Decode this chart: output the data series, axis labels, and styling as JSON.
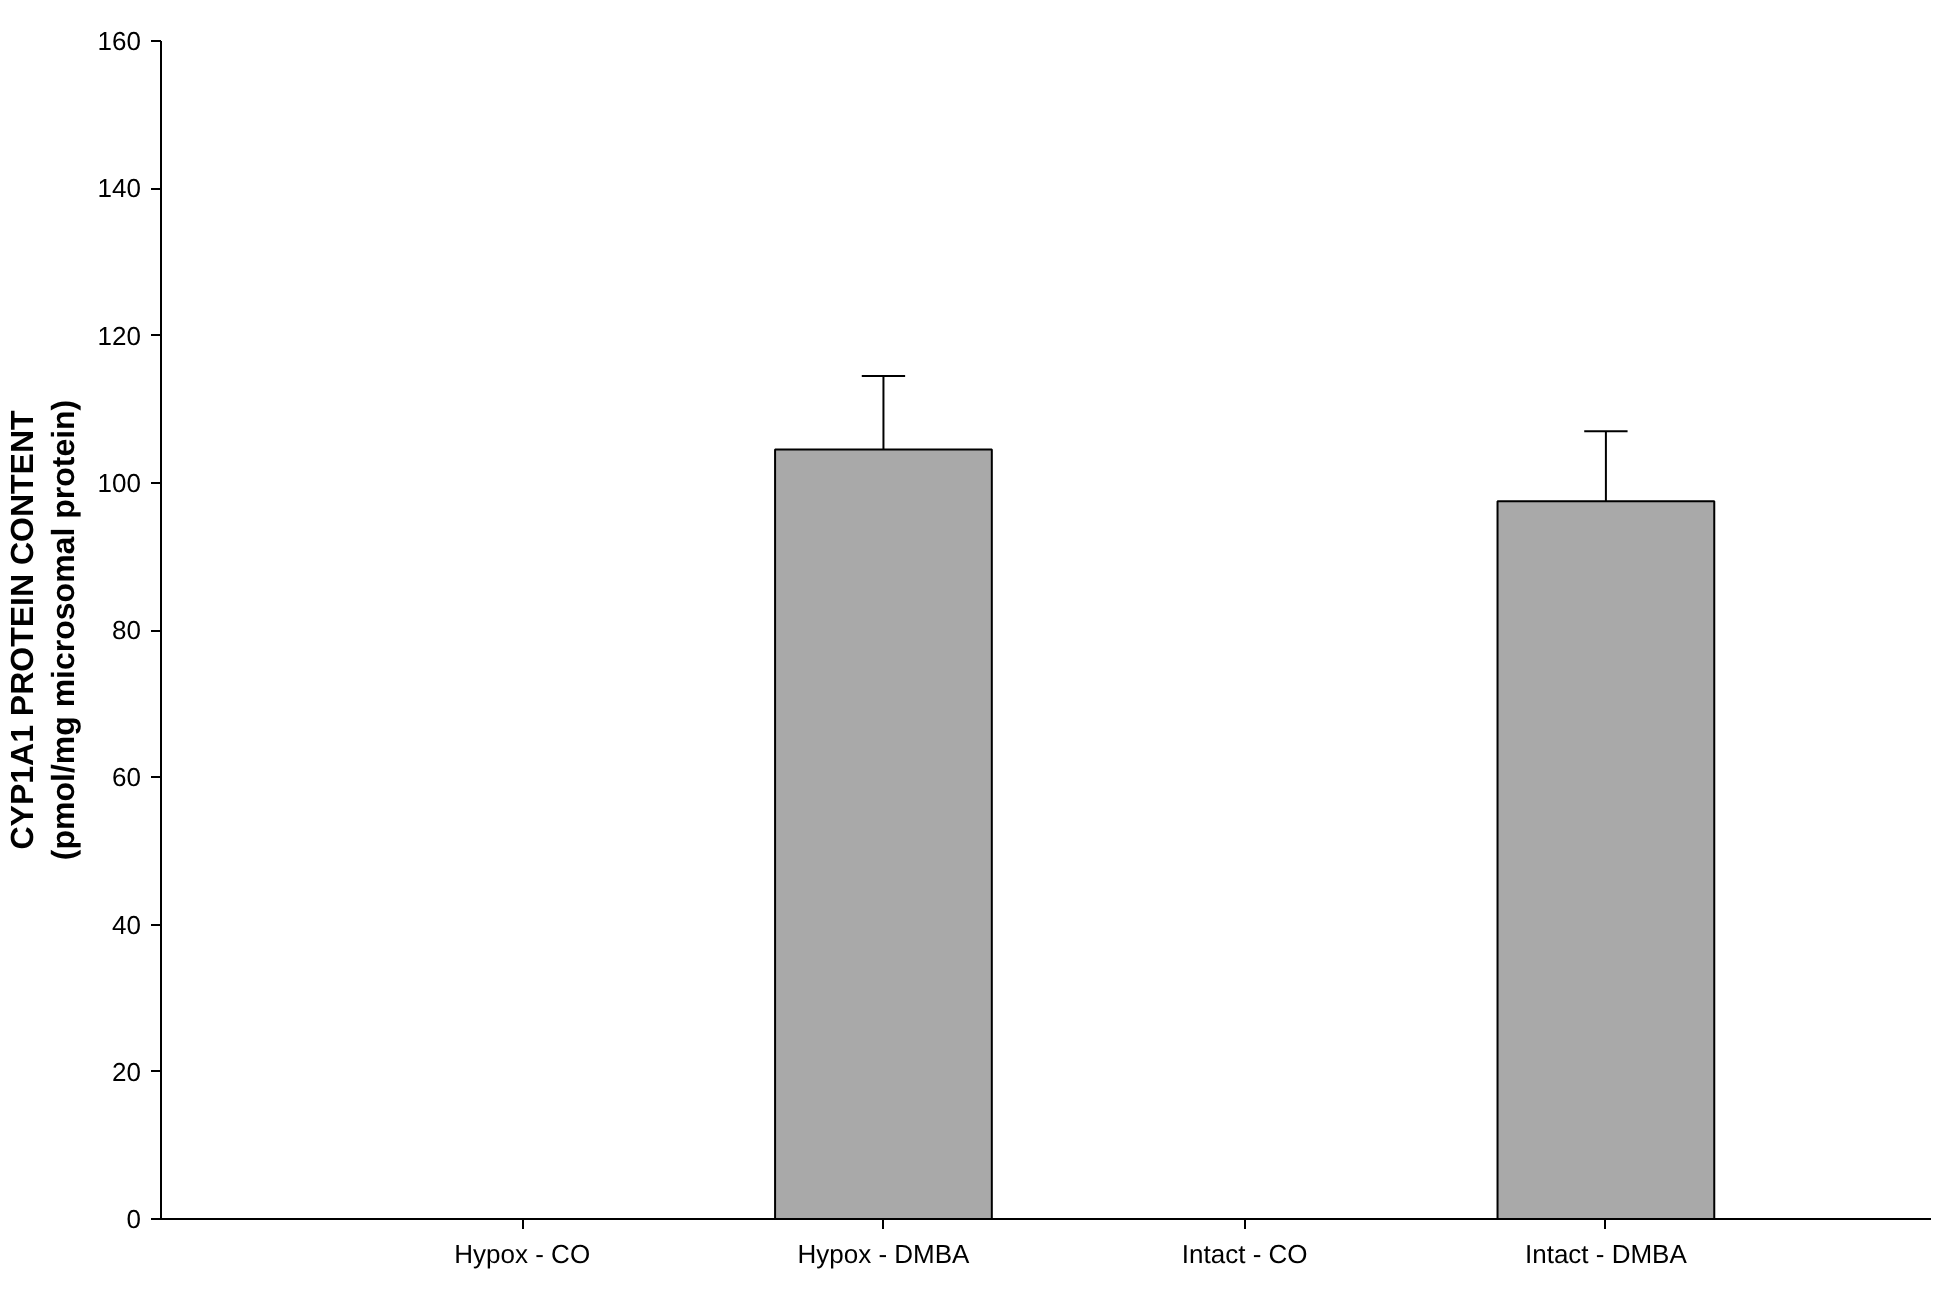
{
  "chart_data": {
    "type": "bar",
    "ylabel": "CYP1A1 PROTEIN CONTENT\n(pmol/mg microsomal protein)",
    "categories": [
      "Hypox - CO",
      "Hypox - DMBA",
      "Intact - CO",
      "Intact - DMBA"
    ],
    "values": [
      null,
      104.5,
      null,
      97.5
    ],
    "errors": [
      null,
      10,
      null,
      9.5
    ],
    "color": "#a9a9a9",
    "ylim": [
      0,
      160
    ],
    "yticks": [
      0,
      20,
      40,
      60,
      80,
      100,
      120,
      140,
      160
    ],
    "grid": false
  }
}
